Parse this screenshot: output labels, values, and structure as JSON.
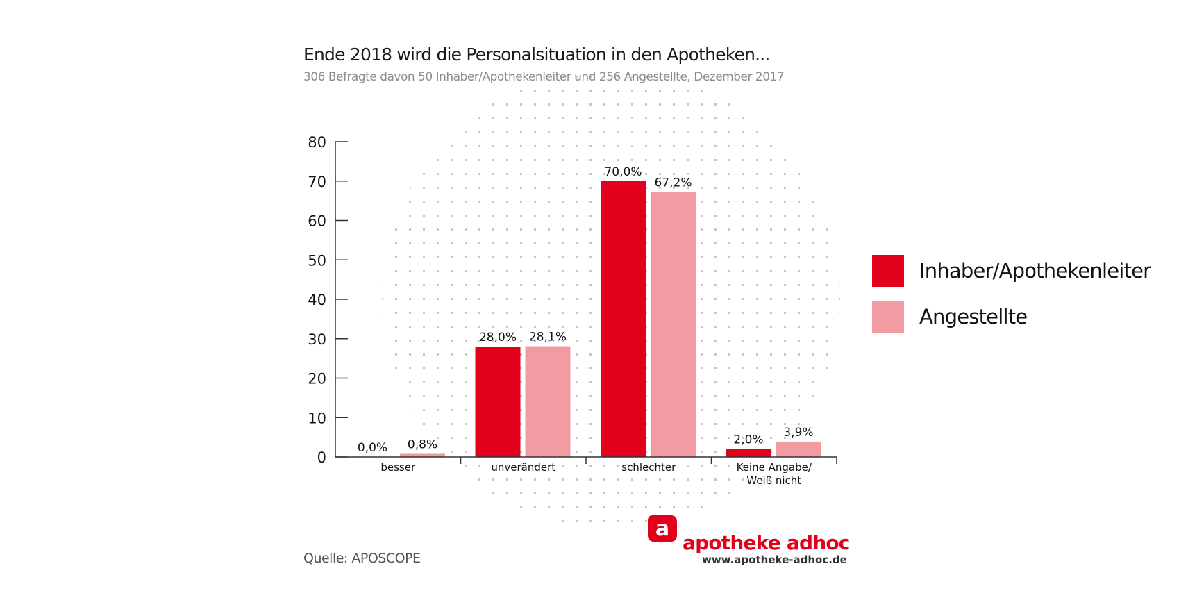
{
  "chart_data": {
    "type": "bar",
    "title": "Ende 2018 wird die Personalsituation in den Apotheken...",
    "subtitle": "306 Befragte davon 50 Inhaber/Apothekenleiter und 256 Angestellte, Dezember 2017",
    "categories": [
      "besser",
      "unverändert",
      "schlechter",
      "Keine Angabe/\nWeiß nicht"
    ],
    "series": [
      {
        "name": "Inhaber/Apothekenleiter",
        "color": "#e2001a",
        "values": [
          0.0,
          28.0,
          70.0,
          2.0
        ],
        "labels": [
          "0,0%",
          "28,0%",
          "70,0%",
          "2,0%"
        ]
      },
      {
        "name": "Angestellte",
        "color": "#f29ba3",
        "values": [
          0.8,
          28.1,
          67.2,
          3.9
        ],
        "labels": [
          "0,8%",
          "28,1%",
          "67,2%",
          "3,9%"
        ]
      }
    ],
    "yticks": [
      0,
      10,
      20,
      30,
      40,
      50,
      60,
      70,
      80
    ],
    "ylim": [
      0,
      80
    ],
    "xlabel": "",
    "ylabel": "",
    "grid": false,
    "legend_position": "right"
  },
  "footer": {
    "source": "Quelle: APOSCOPE",
    "brand": "apotheke adhoc",
    "url": "www.apotheke-adhoc.de",
    "logo_letter": "a"
  }
}
